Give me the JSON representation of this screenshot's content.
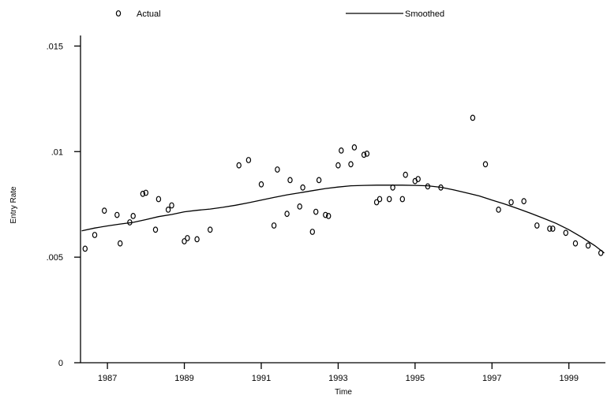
{
  "chart_data": {
    "type": "scatter",
    "title": "",
    "xlabel": "Time",
    "ylabel": "Entry Rate",
    "xlim": [
      1986.3,
      1999.95
    ],
    "ylim": [
      0,
      0.0155
    ],
    "grid": false,
    "legend_position": "top",
    "x_ticks": [
      1987,
      1989,
      1991,
      1993,
      1995,
      1997,
      1999
    ],
    "x_tick_labels": [
      "1987",
      "1989",
      "1991",
      "1993",
      "1995",
      "1997",
      "1999"
    ],
    "y_ticks": [
      0,
      0.005,
      0.01,
      0.015
    ],
    "y_tick_labels": [
      "0",
      ".005",
      ".01",
      ".015"
    ],
    "series": [
      {
        "name": "Actual",
        "style": "markers",
        "x": [
          1986.42,
          1986.67,
          1986.92,
          1987.25,
          1987.33,
          1987.58,
          1987.67,
          1987.92,
          1988.0,
          1988.25,
          1988.33,
          1988.58,
          1988.67,
          1989.0,
          1989.08,
          1989.33,
          1989.67,
          1990.42,
          1990.67,
          1991.0,
          1991.33,
          1991.42,
          1991.67,
          1991.75,
          1992.0,
          1992.08,
          1992.33,
          1992.42,
          1992.5,
          1992.67,
          1992.75,
          1993.0,
          1993.08,
          1993.33,
          1993.42,
          1993.67,
          1993.75,
          1994.0,
          1994.08,
          1994.33,
          1994.42,
          1994.67,
          1994.75,
          1995.0,
          1995.08,
          1995.33,
          1995.67,
          1996.5,
          1996.83,
          1997.17,
          1997.5,
          1997.83,
          1998.17,
          1998.5,
          1998.58,
          1998.92,
          1999.17,
          1999.5,
          1999.83
        ],
        "y": [
          0.0054,
          0.00605,
          0.0072,
          0.007,
          0.00565,
          0.00665,
          0.00695,
          0.008,
          0.00805,
          0.0063,
          0.00775,
          0.00725,
          0.00745,
          0.00575,
          0.0059,
          0.00585,
          0.0063,
          0.00935,
          0.0096,
          0.00845,
          0.0065,
          0.00915,
          0.00705,
          0.00865,
          0.0074,
          0.0083,
          0.0062,
          0.00715,
          0.00865,
          0.007,
          0.00695,
          0.00935,
          0.01005,
          0.0094,
          0.0102,
          0.00985,
          0.0099,
          0.0076,
          0.00775,
          0.00775,
          0.0083,
          0.00775,
          0.0089,
          0.0086,
          0.0087,
          0.00835,
          0.0083,
          0.0116,
          0.0094,
          0.00725,
          0.0076,
          0.00765,
          0.0065,
          0.00635,
          0.00635,
          0.00615,
          0.00565,
          0.00555,
          0.0052
        ]
      },
      {
        "name": "Smoothed",
        "style": "line",
        "x": [
          1986.33,
          1986.67,
          1987.0,
          1987.33,
          1987.67,
          1988.0,
          1988.33,
          1988.67,
          1989.0,
          1989.33,
          1989.67,
          1990.0,
          1990.33,
          1990.67,
          1991.0,
          1991.33,
          1991.67,
          1992.0,
          1992.33,
          1992.67,
          1993.0,
          1993.33,
          1993.67,
          1994.0,
          1994.33,
          1994.67,
          1995.0,
          1995.33,
          1995.67,
          1996.0,
          1996.33,
          1996.67,
          1997.0,
          1997.33,
          1997.67,
          1998.0,
          1998.33,
          1998.67,
          1999.0,
          1999.33,
          1999.67,
          1999.92
        ],
        "y": [
          0.00625,
          0.00638,
          0.00648,
          0.00657,
          0.00665,
          0.00678,
          0.00692,
          0.00702,
          0.00715,
          0.00722,
          0.00728,
          0.00736,
          0.00746,
          0.00758,
          0.0077,
          0.00783,
          0.00795,
          0.00805,
          0.00815,
          0.00825,
          0.00832,
          0.00838,
          0.0084,
          0.00841,
          0.00841,
          0.00841,
          0.0084,
          0.00838,
          0.00831,
          0.00819,
          0.00805,
          0.0079,
          0.0077,
          0.00752,
          0.0073,
          0.00708,
          0.00685,
          0.0066,
          0.0063,
          0.00595,
          0.00555,
          0.0052
        ]
      }
    ]
  }
}
